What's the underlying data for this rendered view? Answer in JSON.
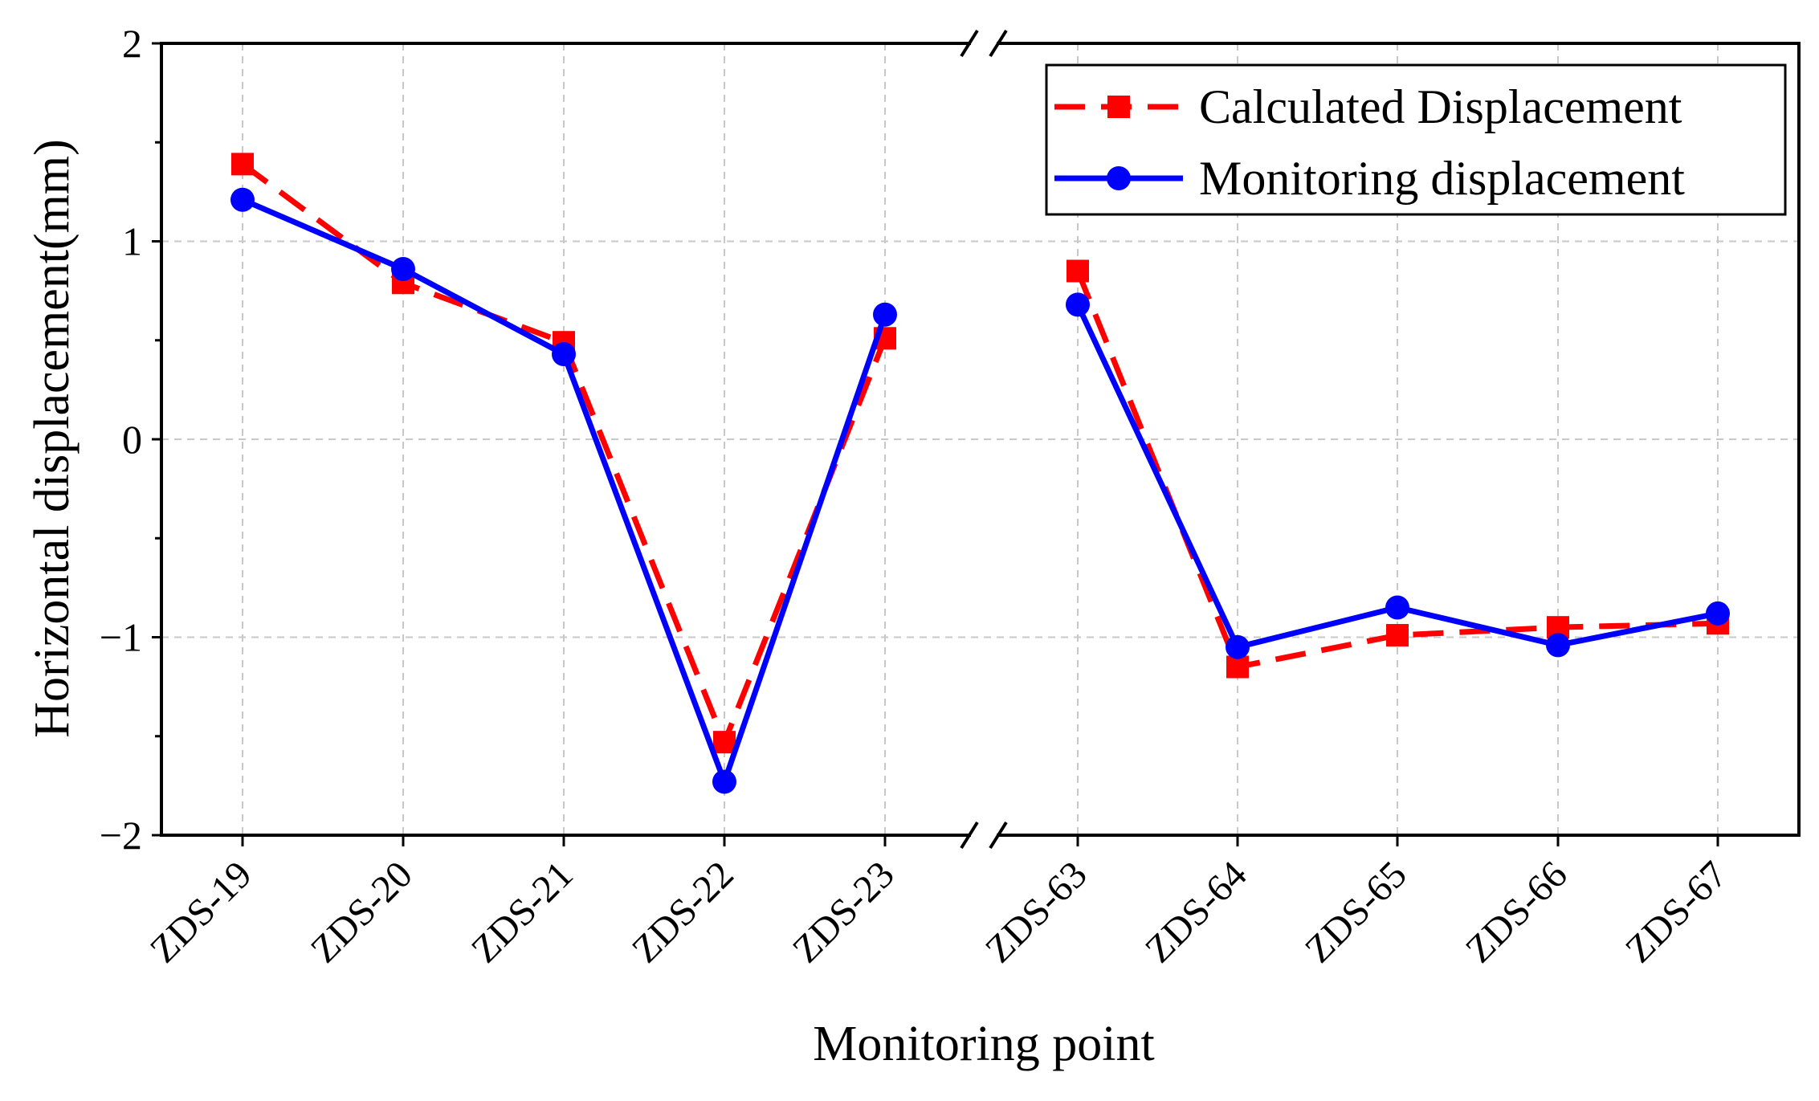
{
  "chart_data": {
    "type": "line",
    "title": "",
    "xlabel": "Monitoring point",
    "ylabel": "Horizontal displacement(mm)",
    "ylim": [
      -2,
      2
    ],
    "yticks": [
      -2,
      -1,
      0,
      1,
      2
    ],
    "ytick_labels": [
      "−2",
      "−1",
      "0",
      "1",
      "2"
    ],
    "categories": [
      "ZDS-19",
      "ZDS-20",
      "ZDS-21",
      "ZDS-22",
      "ZDS-23",
      "ZDS-63",
      "ZDS-64",
      "ZDS-65",
      "ZDS-66",
      "ZDS-67"
    ],
    "axis_break_after_index": 4,
    "grid": true,
    "legend_position": "top-right",
    "series": [
      {
        "name": "Calculated Displacement",
        "color": "#ff0000",
        "line_style": "dashed",
        "marker": "square",
        "values": [
          1.39,
          0.79,
          0.49,
          -1.53,
          0.51,
          0.85,
          -1.15,
          -0.99,
          -0.95,
          -0.93
        ]
      },
      {
        "name": "Monitoring displacement",
        "color": "#0000ff",
        "line_style": "solid",
        "marker": "circle",
        "values": [
          1.21,
          0.86,
          0.43,
          -1.73,
          0.63,
          0.68,
          -1.05,
          -0.85,
          -1.04,
          -0.88
        ]
      }
    ]
  }
}
